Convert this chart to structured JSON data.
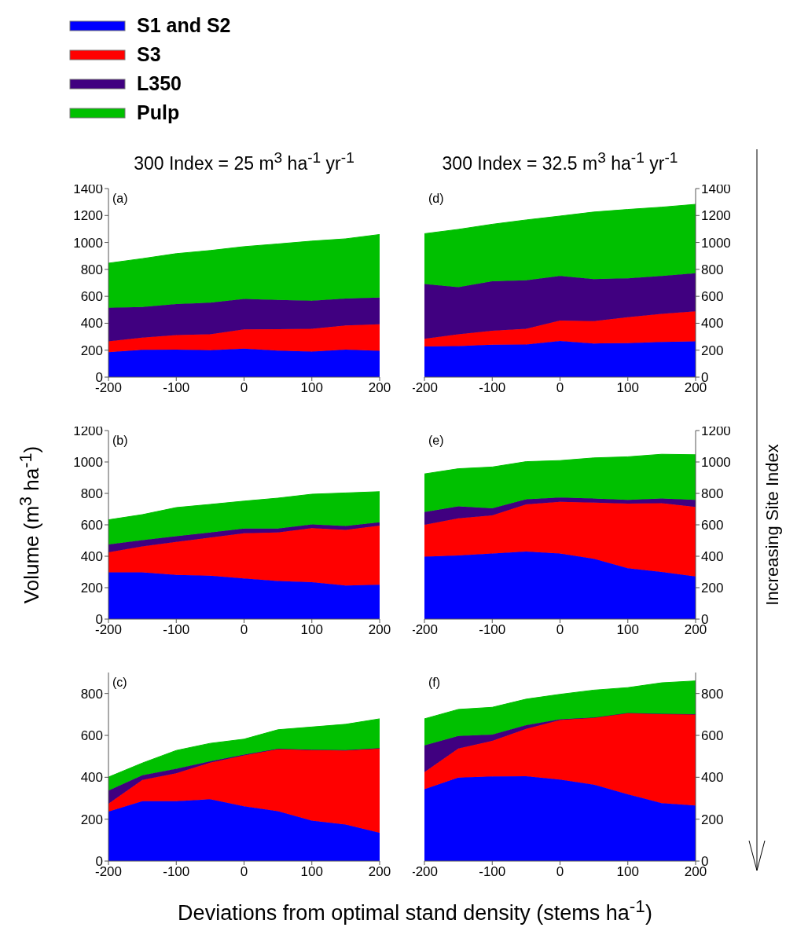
{
  "chart_data": [
    {
      "type": "area",
      "title": "300 Index = 25 m$^{3}$ ha$^{-1}$ yr$^{-1}$",
      "annotations": [
        "(a)"
      ],
      "stacked": true,
      "legend": "top left",
      "grid": false,
      "x": [
        -200,
        -150,
        -100,
        -50,
        0,
        50,
        100,
        150,
        200
      ],
      "xlim": [
        -200,
        200
      ],
      "xticks": [
        -200,
        -100,
        0,
        100,
        200
      ],
      "ylim": [
        0,
        1400
      ],
      "yticks": [
        0,
        200,
        400,
        600,
        800,
        1000,
        1200,
        1400
      ],
      "series": [
        {
          "name": "S1 and S2",
          "color": "#0000ff",
          "values": [
            185,
            202,
            204,
            200,
            212,
            197,
            189,
            204,
            195
          ]
        },
        {
          "name": "S3",
          "color": "#ff0000",
          "values": [
            80,
            91,
            108,
            118,
            142,
            159,
            170,
            180,
            197
          ]
        },
        {
          "name": "L350",
          "color": "#400080",
          "values": [
            250,
            227,
            231,
            234,
            227,
            217,
            209,
            199,
            198
          ]
        },
        {
          "name": "Pulp",
          "color": "#00c000",
          "values": [
            331,
            360,
            374,
            388,
            388,
            416,
            442,
            444,
            469
          ]
        }
      ]
    },
    {
      "type": "area",
      "ylabel": "Volume (m$^{3}$ ha$^{-1}$)",
      "annotations": [
        "(b)"
      ],
      "stacked": true,
      "grid": false,
      "x": [
        -200,
        -150,
        -100,
        -50,
        0,
        50,
        100,
        150,
        200
      ],
      "xlim": [
        -200,
        200
      ],
      "xticks": [
        -200,
        -100,
        0,
        100,
        200
      ],
      "ylim": [
        0,
        1200
      ],
      "yticks": [
        0,
        200,
        400,
        600,
        800,
        1000,
        1200
      ],
      "series": [
        {
          "color": "#0000ff",
          "values": [
            297,
            297,
            281,
            276,
            259,
            243,
            235,
            214,
            219
          ]
        },
        {
          "color": "#ff0000",
          "values": [
            128,
            165,
            210,
            243,
            287,
            308,
            344,
            354,
            376
          ]
        },
        {
          "color": "#400080",
          "values": [
            50,
            41,
            36,
            32,
            30,
            25,
            24,
            24,
            21
          ]
        },
        {
          "color": "#00c000",
          "values": [
            157,
            162,
            183,
            179,
            175,
            194,
            192,
            211,
            195
          ]
        }
      ]
    },
    {
      "type": "area",
      "xlabel": "Deviations from optimal stand density (stems ha$^{-1}$)",
      "annotations": [
        "(c)"
      ],
      "stacked": true,
      "grid": false,
      "x": [
        -200,
        -150,
        -100,
        -50,
        0,
        50,
        100,
        150,
        200
      ],
      "xlim": [
        -200,
        200
      ],
      "xticks": [
        -200,
        -100,
        0,
        100,
        200
      ],
      "ylim": [
        0,
        900
      ],
      "yticks": [
        0,
        200,
        400,
        600,
        800
      ],
      "series": [
        {
          "color": "#0000ff",
          "values": [
            236,
            286,
            286,
            295,
            262,
            238,
            193,
            174,
            135
          ]
        },
        {
          "color": "#ff0000",
          "values": [
            38,
            101,
            133,
            175,
            242,
            296,
            337,
            354,
            402
          ]
        },
        {
          "color": "#400080",
          "values": [
            63,
            23,
            22,
            6,
            4,
            2,
            2,
            2,
            2
          ]
        },
        {
          "color": "#00c000",
          "values": [
            64,
            58,
            87,
            86,
            74,
            91,
            108,
            123,
            140
          ]
        }
      ]
    },
    {
      "type": "area",
      "title": "300 Index = 32.5 m$^{3}$ ha$^{-1}$ yr$^{-1}$",
      "annotations": [
        "(d)"
      ],
      "stacked": true,
      "grid": false,
      "x": [
        -200,
        -150,
        -100,
        -50,
        0,
        50,
        100,
        150,
        200
      ],
      "xlim": [
        -200,
        200
      ],
      "xticks": [
        -200,
        -100,
        0,
        100,
        200
      ],
      "ylim": [
        0,
        1400
      ],
      "yticks": [
        0,
        200,
        400,
        600,
        800,
        1000,
        1200,
        1400
      ],
      "series": [
        {
          "color": "#0000ff",
          "values": [
            227,
            231,
            240,
            242,
            269,
            250,
            252,
            261,
            265
          ]
        },
        {
          "color": "#ff0000",
          "values": [
            57,
            87,
            104,
            117,
            151,
            166,
            193,
            208,
            223
          ]
        },
        {
          "color": "#400080",
          "values": [
            407,
            350,
            367,
            360,
            331,
            312,
            289,
            282,
            284
          ]
        },
        {
          "color": "#00c000",
          "values": [
            374,
            429,
            424,
            448,
            445,
            498,
            511,
            511,
            511
          ]
        }
      ]
    },
    {
      "type": "area",
      "annotations": [
        "(e)",
        "Increasing Site Index"
      ],
      "stacked": true,
      "grid": false,
      "x": [
        -200,
        -150,
        -100,
        -50,
        0,
        50,
        100,
        150,
        200
      ],
      "xlim": [
        -200,
        200
      ],
      "xticks": [
        -200,
        -100,
        0,
        100,
        200
      ],
      "ylim": [
        0,
        1200
      ],
      "yticks": [
        0,
        200,
        400,
        600,
        800,
        1000,
        1200
      ],
      "series": [
        {
          "color": "#0000ff",
          "values": [
            397,
            405,
            418,
            430,
            417,
            384,
            324,
            300,
            271
          ]
        },
        {
          "color": "#ff0000",
          "values": [
            203,
            236,
            242,
            300,
            329,
            357,
            411,
            438,
            443
          ]
        },
        {
          "color": "#400080",
          "values": [
            81,
            76,
            45,
            32,
            28,
            26,
            24,
            29,
            45
          ]
        },
        {
          "color": "#00c000",
          "values": [
            243,
            240,
            263,
            240,
            235,
            259,
            274,
            282,
            287
          ]
        }
      ]
    },
    {
      "type": "area",
      "annotations": [
        "(f)"
      ],
      "stacked": true,
      "grid": false,
      "x": [
        -200,
        -150,
        -100,
        -50,
        0,
        50,
        100,
        150,
        200
      ],
      "xlim": [
        -200,
        200
      ],
      "xticks": [
        -200,
        -100,
        0,
        100,
        200
      ],
      "ylim": [
        0,
        900
      ],
      "yticks": [
        0,
        200,
        400,
        600,
        800
      ],
      "series": [
        {
          "color": "#0000ff",
          "values": [
            343,
            398,
            404,
            405,
            389,
            365,
            319,
            277,
            265
          ]
        },
        {
          "color": "#ff0000",
          "values": [
            82,
            139,
            170,
            226,
            284,
            320,
            388,
            426,
            436
          ]
        },
        {
          "color": "#400080",
          "values": [
            127,
            60,
            30,
            18,
            4,
            0,
            0,
            0,
            0
          ]
        },
        {
          "color": "#00c000",
          "values": [
            127,
            127,
            130,
            124,
            119,
            131,
            121,
            148,
            159
          ]
        }
      ]
    }
  ]
}
